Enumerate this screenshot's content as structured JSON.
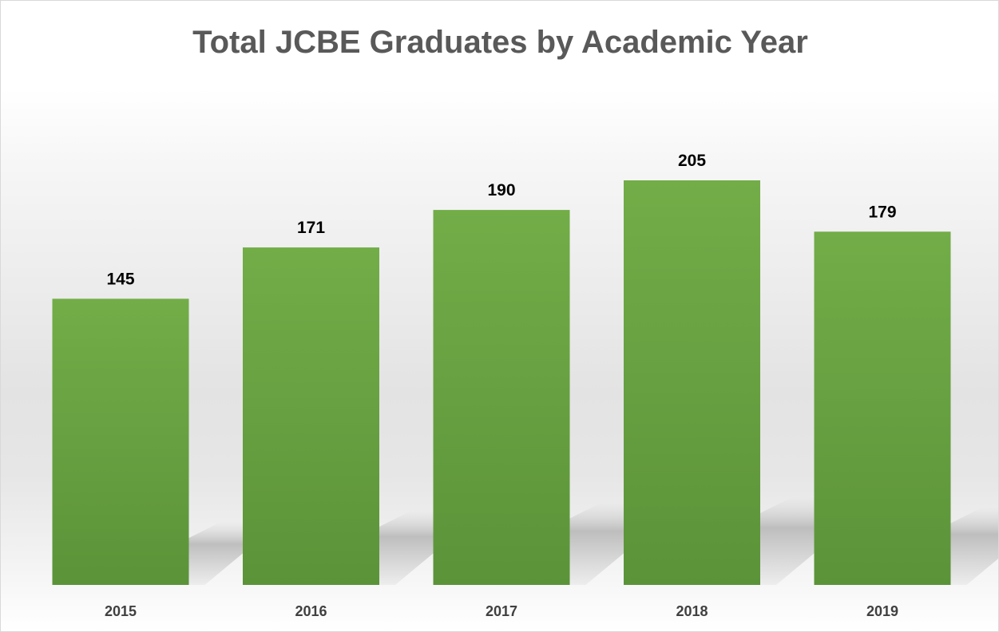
{
  "colors": {
    "bar_top": "#72ad48",
    "bar_bottom": "#5b9339"
  },
  "chart_data": {
    "type": "bar",
    "title": "Total JCBE Graduates by Academic Year",
    "xlabel": "",
    "ylabel": "",
    "categories": [
      "2015",
      "2016",
      "2017",
      "2018",
      "2019"
    ],
    "values": [
      145,
      171,
      190,
      205,
      179
    ],
    "ylim": [
      0,
      205
    ],
    "grid": false,
    "legend": "none",
    "data_labels": true
  }
}
